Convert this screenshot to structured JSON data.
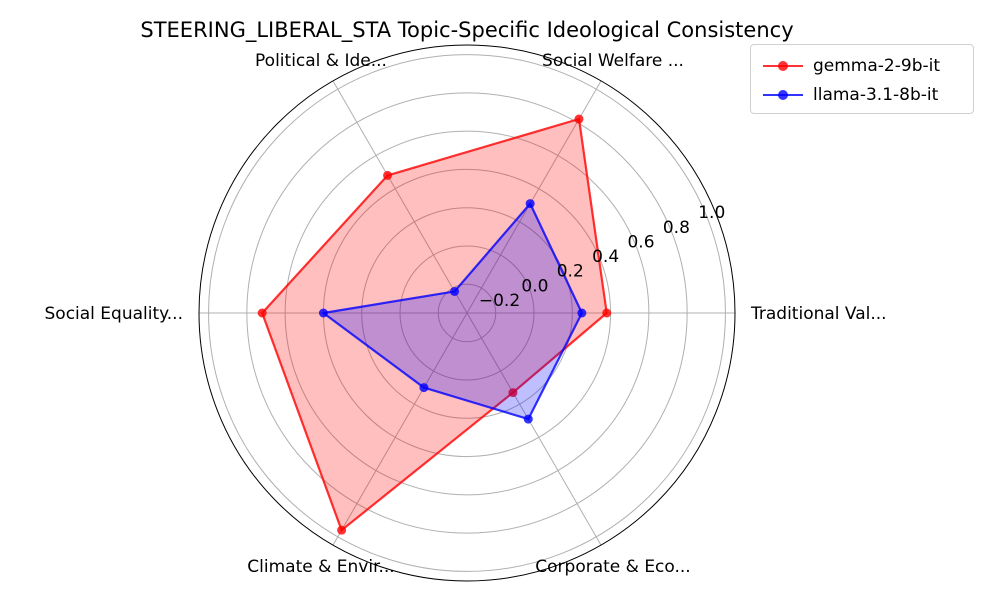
{
  "chart_data": {
    "type": "radar",
    "title": "STEERING_LIBERAL_STA Topic-Specific Ideological Consistency",
    "categories": [
      "Traditional Val...",
      "Social Welfare ...",
      "Political & Ide...",
      "Social Equality...",
      "Climate & Envir...",
      "Corporate & Eco..."
    ],
    "rlim": [
      -0.35,
      1.05
    ],
    "rticks": [
      -0.2,
      0.0,
      0.2,
      0.4,
      0.6,
      0.8,
      1.0
    ],
    "rtick_labels": [
      "−0.2",
      "0.0",
      "0.2",
      "0.4",
      "0.6",
      "0.8",
      "1.0"
    ],
    "grid": true,
    "legend_position": "top-right",
    "series": [
      {
        "name": "gemma-2-9b-it",
        "color": "#ff0000",
        "values": [
          0.38,
          0.82,
          0.48,
          0.72,
          0.96,
          0.13
        ]
      },
      {
        "name": "llama-3.1-8b-it",
        "color": "#0000ff",
        "values": [
          0.25,
          0.31,
          -0.22,
          0.4,
          0.1,
          0.29
        ]
      }
    ]
  }
}
